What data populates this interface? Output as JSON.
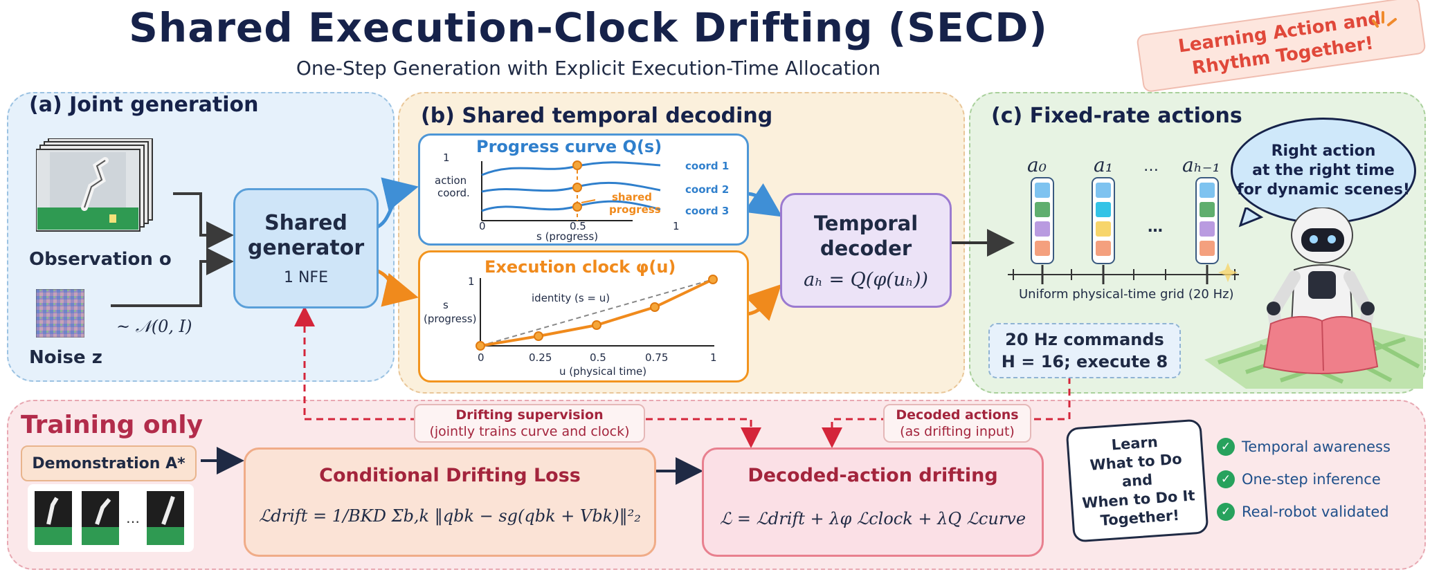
{
  "header": {
    "title": "Shared Execution-Clock Drifting (SECD)",
    "subtitle": "One-Step Generation with Explicit Execution-Time Allocation",
    "callout_line1": "Learning Action and",
    "callout_line2": "Rhythm Together!"
  },
  "panel_a": {
    "title": "(a) Joint generation",
    "observation_label": "Observation o",
    "noise_label": "Noise z",
    "noise_dist": "~ 𝒩(0, I)",
    "generator_line1": "Shared",
    "generator_line2": "generator",
    "generator_nfe": "1 NFE"
  },
  "panel_b": {
    "title": "(b) Shared temporal decoding",
    "progress": {
      "title": "Progress curve Q(s)",
      "ylabel_line1": "action",
      "ylabel_line2": "coord.",
      "xlabel": "s (progress)",
      "y_top": "1",
      "x_ticks": [
        "0",
        "0.5",
        "1"
      ],
      "coords": [
        "coord 1",
        "coord 2",
        "coord 3"
      ],
      "shared_line1": "shared",
      "shared_line2": "progress"
    },
    "clock": {
      "title": "Execution clock φ(u)",
      "ylabel_line1": "s",
      "ylabel_line2": "(progress)",
      "xlabel": "u (physical time)",
      "identity_label": "identity (s = u)",
      "y_top": "1",
      "x_ticks": [
        "0",
        "0.25",
        "0.5",
        "0.75",
        "1"
      ]
    },
    "decoder_line1": "Temporal",
    "decoder_line2": "decoder",
    "decoder_formula": "aₕ = Q(φ(uₕ))"
  },
  "panel_c": {
    "title": "(c) Fixed-rate actions",
    "action_labels": [
      "a₀",
      "a₁",
      "…",
      "aₕ₋₁"
    ],
    "grid_label": "Uniform physical-time grid (20 Hz)",
    "commands_line1": "20 Hz commands",
    "commands_line2": "H = 16; execute 8",
    "bubble_line1": "Right action",
    "bubble_line2": "at the right time",
    "bubble_line3": "for dynamic scenes!",
    "colors": [
      "#7ec3f0",
      "#5fae6e",
      "#b99be0",
      "#f4a07e",
      "#33c3e6",
      "#f7d56b"
    ]
  },
  "training": {
    "title": "Training only",
    "demo_label": "Demonstration A*",
    "demo_ellipsis": "…",
    "supervision_bold": "Drifting supervision",
    "supervision_sub": "(jointly trains curve and clock)",
    "decoded_bold": "Decoded actions",
    "decoded_sub": "(as drifting input)",
    "loss_title": "Conditional Drifting Loss",
    "loss_formula": "ℒdrift = 1/BKD Σb,k ‖qbk − sg(qbk + Vbk)‖²₂",
    "drift_title": "Decoded-action drifting",
    "drift_formula": "ℒ = ℒdrift + λφ ℒclock + λQ ℒcurve",
    "learn_line1": "Learn",
    "learn_line2": "What to Do",
    "learn_line3": "and",
    "learn_line4": "When to Do It",
    "learn_line5": "Together!",
    "checks": [
      "Temporal awareness",
      "One-step inference",
      "Real-robot validated"
    ]
  }
}
